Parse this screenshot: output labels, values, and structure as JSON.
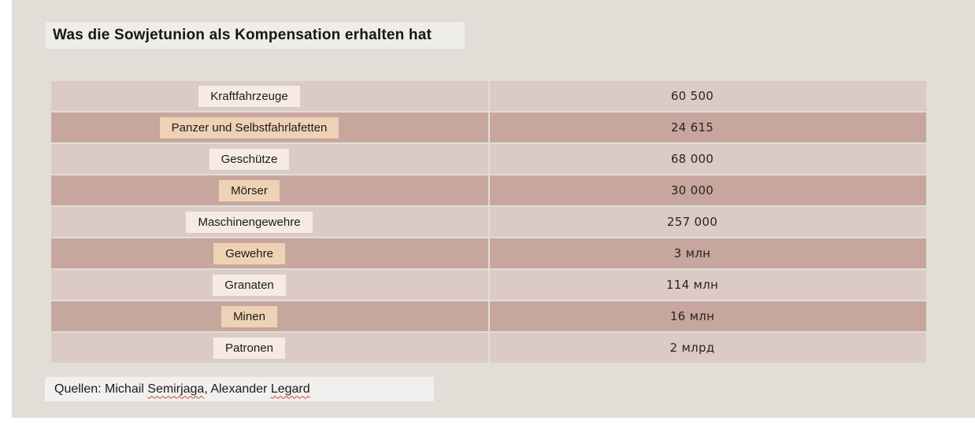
{
  "title": "Was die Sowjetunion als Kompensation erhalten hat",
  "source": {
    "prefix": "Quellen: Michail ",
    "name1": "Semirjaga",
    "middle": ", Alexander ",
    "name2": "Legard"
  },
  "chart_data": {
    "type": "table",
    "title": "Was die Sowjetunion als Kompensation erhalten hat",
    "source": "Quellen: Michail Semirjaga, Alexander Legard",
    "rows": [
      {
        "label": "Kraftfahrzeuge",
        "value": "60 500",
        "value_numeric": 60500
      },
      {
        "label": "Panzer und Selbstfahrlafetten",
        "value": "24 615",
        "value_numeric": 24615
      },
      {
        "label": "Geschütze",
        "value": "68 000",
        "value_numeric": 68000
      },
      {
        "label": "Mörser",
        "value": "30 000",
        "value_numeric": 30000
      },
      {
        "label": "Maschinengewehre",
        "value": "257 000",
        "value_numeric": 257000
      },
      {
        "label": "Gewehre",
        "value": "3 млн",
        "value_numeric": 3000000
      },
      {
        "label": "Granaten",
        "value": "114 млн",
        "value_numeric": 114000000
      },
      {
        "label": "Minen",
        "value": "16 млн",
        "value_numeric": 16000000
      },
      {
        "label": "Patronen",
        "value": "2 млрд",
        "value_numeric": 2000000000
      }
    ],
    "layout": {
      "row_style": "alternating",
      "legend": "none",
      "grid": "row-separators"
    }
  },
  "colors": {
    "panel_bg": "#e0ded7",
    "page_bg": "#ffffff",
    "row_light": "#dccbc5",
    "row_dark": "#c7a69e",
    "label_cream": "#f5ebe4",
    "label_peach": "#eed2b6",
    "strip_bg": "#eeedea",
    "text": "#1d1a17",
    "squiggle_red": "#c0493b"
  }
}
